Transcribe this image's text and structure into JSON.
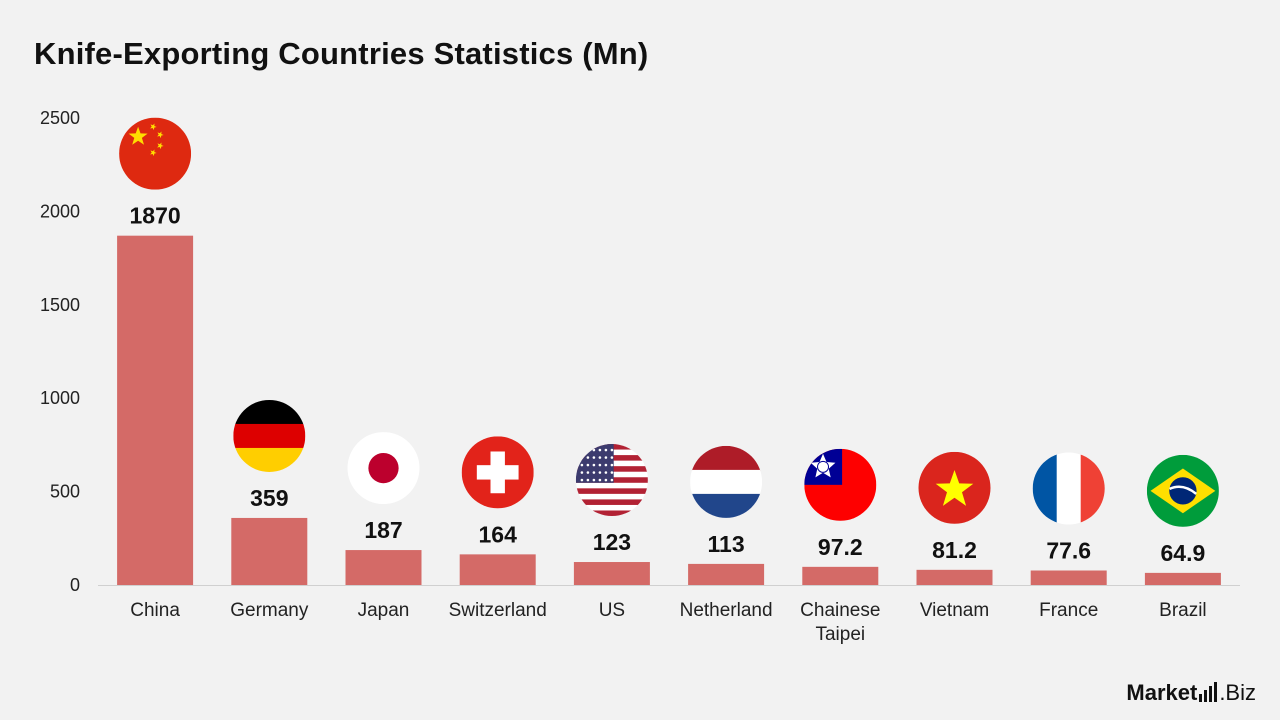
{
  "chart_data": {
    "type": "bar",
    "title": "Knife-Exporting Countries Statistics (Mn)",
    "categories": [
      "China",
      "Germany",
      "Japan",
      "Switzerland",
      "US",
      "Netherland",
      "Chainese Taipei",
      "Vietnam",
      "France",
      "Brazil"
    ],
    "category_lines": [
      [
        "China"
      ],
      [
        "Germany"
      ],
      [
        "Japan"
      ],
      [
        "Switzerland"
      ],
      [
        "US"
      ],
      [
        "Netherland"
      ],
      [
        "Chainese",
        "Taipei"
      ],
      [
        "Vietnam"
      ],
      [
        "France"
      ],
      [
        "Brazil"
      ]
    ],
    "values": [
      1870,
      359,
      187,
      164,
      123,
      113,
      97.2,
      81.2,
      77.6,
      64.9
    ],
    "value_labels": [
      "1870",
      "359",
      "187",
      "164",
      "123",
      "113",
      "97.2",
      "81.2",
      "77.6",
      "64.9"
    ],
    "flags": [
      "china-flag-icon",
      "germany-flag-icon",
      "japan-flag-icon",
      "switzerland-flag-icon",
      "us-flag-icon",
      "netherlands-flag-icon",
      "taiwan-flag-icon",
      "vietnam-flag-icon",
      "france-flag-icon",
      "brazil-flag-icon"
    ],
    "ylim": [
      0,
      2500
    ],
    "yticks": [
      0,
      500,
      1000,
      1500,
      2000,
      2500
    ],
    "xlabel": "",
    "ylabel": "",
    "grid": false,
    "bar_color": "#d46a67"
  },
  "brand": {
    "name_bold": "Market",
    "name_rest": ".Biz"
  }
}
